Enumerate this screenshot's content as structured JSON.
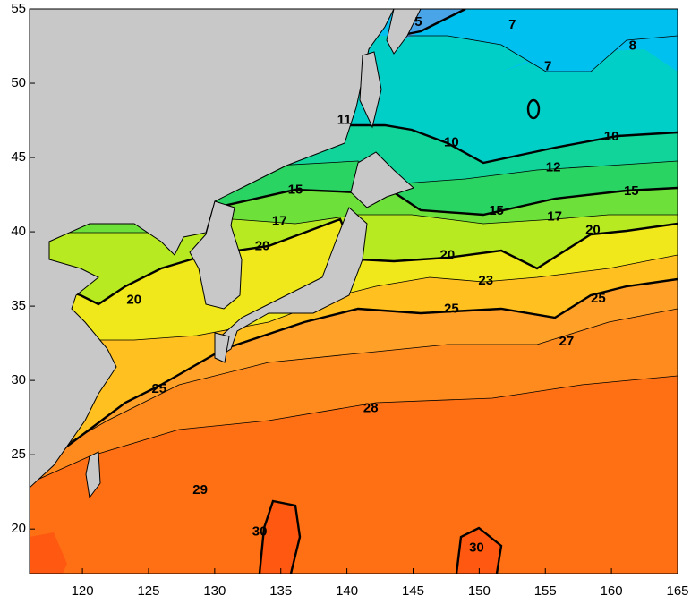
{
  "map": {
    "xlim": [
      116,
      165
    ],
    "ylim": [
      17,
      55
    ],
    "xticks": [
      120,
      125,
      130,
      135,
      140,
      145,
      150,
      155,
      160,
      165
    ],
    "yticks": [
      20,
      25,
      30,
      35,
      40,
      45,
      50,
      55
    ],
    "contour_labels": [
      {
        "value": 5,
        "lon": 145.4,
        "lat": 54.1
      },
      {
        "value": 7,
        "lon": 152.5,
        "lat": 53.9
      },
      {
        "value": 8,
        "lon": 161.6,
        "lat": 52.5
      },
      {
        "value": 7,
        "lon": 155.2,
        "lat": 51.1
      },
      {
        "value": 11,
        "lon": 139.8,
        "lat": 47.5
      },
      {
        "value": 10,
        "lon": 147.9,
        "lat": 46.0
      },
      {
        "value": 10,
        "lon": 160.0,
        "lat": 46.4
      },
      {
        "value": 12,
        "lon": 155.6,
        "lat": 44.3
      },
      {
        "value": 15,
        "lon": 136.1,
        "lat": 42.8
      },
      {
        "value": 15,
        "lon": 151.3,
        "lat": 41.4
      },
      {
        "value": 15,
        "lon": 161.5,
        "lat": 42.7
      },
      {
        "value": 17,
        "lon": 134.9,
        "lat": 40.7
      },
      {
        "value": 17,
        "lon": 155.7,
        "lat": 41.0
      },
      {
        "value": 20,
        "lon": 133.6,
        "lat": 39.0
      },
      {
        "value": 20,
        "lon": 147.6,
        "lat": 38.4
      },
      {
        "value": 20,
        "lon": 158.6,
        "lat": 40.1
      },
      {
        "value": 20,
        "lon": 123.9,
        "lat": 35.4
      },
      {
        "value": 23,
        "lon": 150.5,
        "lat": 36.7
      },
      {
        "value": 25,
        "lon": 147.9,
        "lat": 34.8
      },
      {
        "value": 25,
        "lon": 159.0,
        "lat": 35.5
      },
      {
        "value": 25,
        "lon": 125.8,
        "lat": 29.4
      },
      {
        "value": 27,
        "lon": 156.6,
        "lat": 32.6
      },
      {
        "value": 28,
        "lon": 141.8,
        "lat": 28.1
      },
      {
        "value": 29,
        "lon": 128.9,
        "lat": 22.6
      },
      {
        "value": 30,
        "lon": 133.4,
        "lat": 19.8
      },
      {
        "value": 30,
        "lon": 149.8,
        "lat": 18.7
      }
    ]
  }
}
